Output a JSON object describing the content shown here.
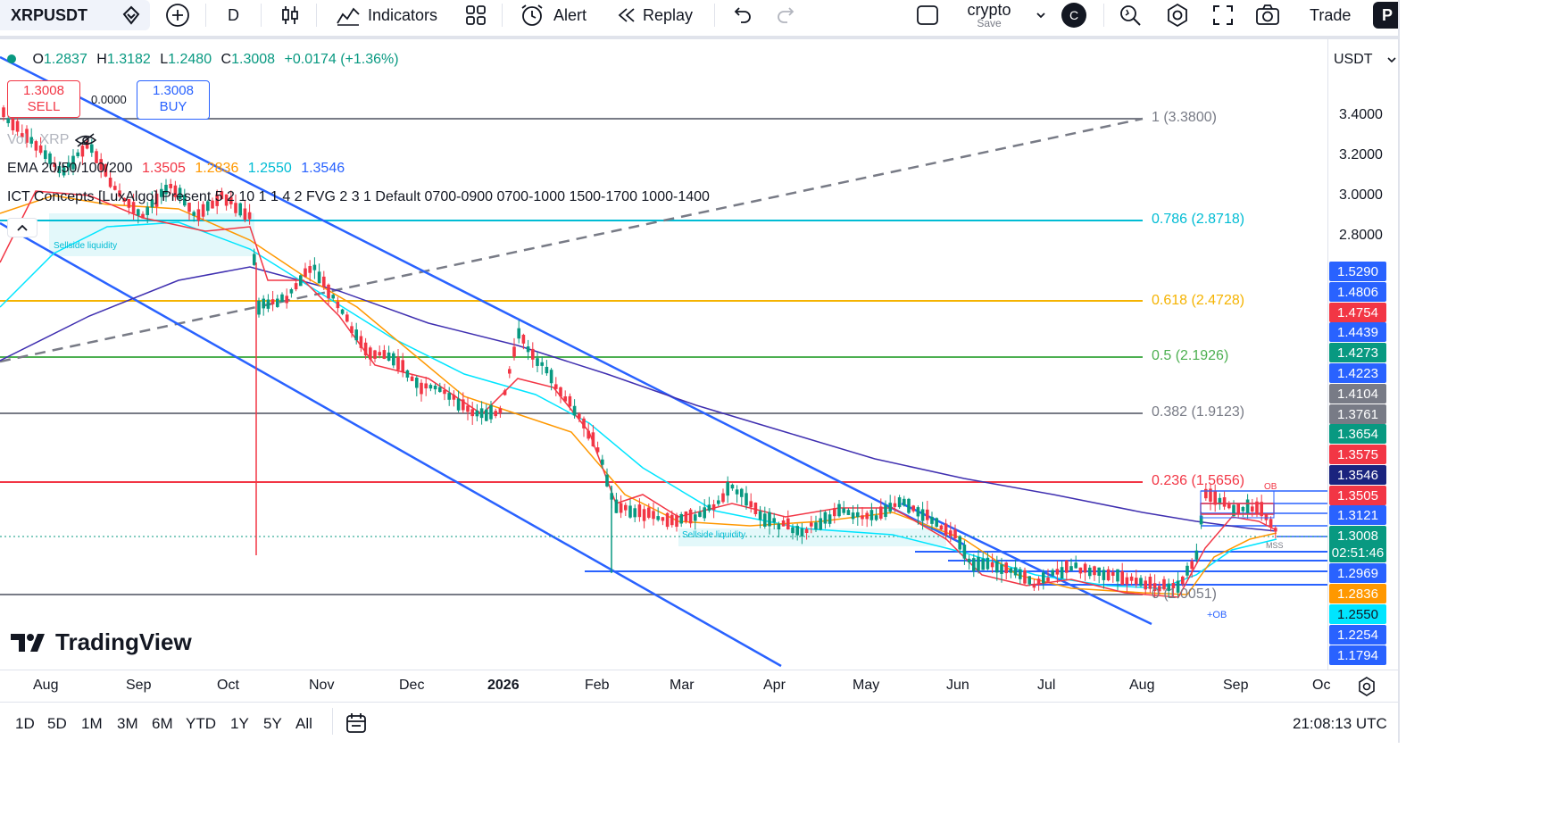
{
  "toolbar": {
    "symbol": "XRPUSDT",
    "interval": "D",
    "indicators_label": "Indicators",
    "alert_label": "Alert",
    "replay_label": "Replay",
    "layout_name": "crypto",
    "layout_save": "Save",
    "avatar_letter": "C",
    "trade_label": "Trade",
    "publish_letter": "P"
  },
  "legend": {
    "ohlc": {
      "o_label": "O",
      "o_value": "1.2837",
      "h_label": "H",
      "h_value": "1.3182",
      "l_label": "L",
      "l_value": "1.2480",
      "c_label": "C",
      "c_value": "1.3008",
      "change": "+0.0174 (+1.36%)"
    },
    "sell_price": "1.3008",
    "sell_label": "SELL",
    "spread": "0.0000",
    "buy_price": "1.3008",
    "buy_label": "BUY",
    "vol_label": "Vol · XRP",
    "ema_label": "EMA 20/50/100/200",
    "ema_values": [
      "1.3505",
      "1.2836",
      "1.2550",
      "1.3546"
    ],
    "ict_label": "ICT Concepts [LuxAlgo] Present 5 2 10 1 1 4 2 FVG 2 3 1 Default 0700-0900 0700-1000 1500-1700 1000-1400"
  },
  "fib_levels": [
    {
      "label": "1 (3.3800)",
      "color": "#787b86"
    },
    {
      "label": "0.786 (2.8718)",
      "color": "#00bcd4"
    },
    {
      "label": "0.618 (2.4728)",
      "color": "#f5b301"
    },
    {
      "label": "0.5 (2.1926)",
      "color": "#4caf50"
    },
    {
      "label": "0.382 (1.9123)",
      "color": "#787b86"
    },
    {
      "label": "0.236 (1.5656)",
      "color": "#f23645"
    },
    {
      "label": "0 (1.0051)",
      "color": "#787b86"
    }
  ],
  "annotations": {
    "sellside_1": "Sellside liquidity",
    "sellside_2": "Sellside liquidity",
    "ob_top": "OB",
    "ob_bottom": "+OB",
    "mss": "MSS"
  },
  "price_axis": {
    "currency": "USDT",
    "ticks": [
      "3.4000",
      "3.2000",
      "3.0000",
      "2.8000"
    ],
    "badges": [
      {
        "value": "1.5290",
        "color": "#2962ff"
      },
      {
        "value": "1.4806",
        "color": "#2962ff"
      },
      {
        "value": "1.4754",
        "color": "#f23645"
      },
      {
        "value": "1.4439",
        "color": "#2962ff"
      },
      {
        "value": "1.4273",
        "color": "#089981"
      },
      {
        "value": "1.4223",
        "color": "#2962ff"
      },
      {
        "value": "1.4104",
        "color": "#787b86"
      },
      {
        "value": "1.3761",
        "color": "#787b86"
      },
      {
        "value": "1.3654",
        "color": "#089981"
      },
      {
        "value": "1.3575",
        "color": "#f23645"
      },
      {
        "value": "1.3546",
        "color": "#1a237e"
      },
      {
        "value": "1.3505",
        "color": "#f23645"
      },
      {
        "value": "1.3121",
        "color": "#2962ff"
      },
      {
        "value": "1.3008",
        "color": "#089981"
      },
      {
        "value": "02:51:46",
        "color": "#089981"
      },
      {
        "value": "1.2969",
        "color": "#2962ff"
      },
      {
        "value": "1.2836",
        "color": "#ff9800"
      },
      {
        "value": "1.2550",
        "color": "#00e5ff"
      },
      {
        "value": "1.2254",
        "color": "#2962ff"
      },
      {
        "value": "1.1794",
        "color": "#2962ff"
      }
    ]
  },
  "time_axis": [
    "Aug",
    "Sep",
    "Oct",
    "Nov",
    "Dec",
    "2026",
    "Feb",
    "Mar",
    "Apr",
    "May",
    "Jun",
    "Jul",
    "Aug",
    "Sep",
    "Oc"
  ],
  "watermark": "TradingView",
  "bottom": {
    "ranges": [
      "1D",
      "5D",
      "1M",
      "3M",
      "6M",
      "YTD",
      "1Y",
      "5Y",
      "All"
    ],
    "clock": "21:08:13 UTC"
  },
  "colors": {
    "up": "#089981",
    "down": "#f23645",
    "ema20": "#f23645",
    "ema50": "#ff9800",
    "ema100": "#00e5ff",
    "ema200": "#3f2fb0",
    "channel": "#2962ff"
  }
}
